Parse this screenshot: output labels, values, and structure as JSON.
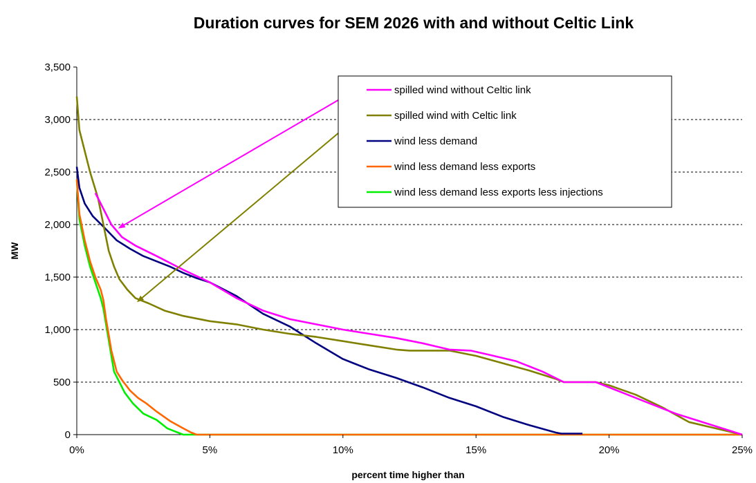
{
  "chart_data": {
    "type": "line",
    "title": "Duration curves for SEM 2026 with and without Celtic Link",
    "xlabel": "percent time higher than",
    "ylabel": "MW",
    "xlim": [
      0,
      25
    ],
    "ylim": [
      0,
      3500
    ],
    "x_ticks": [
      0,
      5,
      10,
      15,
      20,
      25
    ],
    "x_tick_labels": [
      "0%",
      "5%",
      "10%",
      "15%",
      "20%",
      "25%"
    ],
    "y_ticks": [
      0,
      500,
      1000,
      1500,
      2000,
      2500,
      3000,
      3500
    ],
    "y_tick_labels": [
      "0",
      "500",
      "1,000",
      "1,500",
      "2,000",
      "2,500",
      "3,000",
      "3,500"
    ],
    "grid": "horizontal dashed",
    "legend_position": "top-right",
    "series": [
      {
        "name": "spilled wind without Celtic link",
        "color": "#ff00ff",
        "points": [
          [
            0.7,
            2300
          ],
          [
            1.0,
            2150
          ],
          [
            1.3,
            2000
          ],
          [
            1.7,
            1880
          ],
          [
            2.2,
            1800
          ],
          [
            3.0,
            1700
          ],
          [
            4.0,
            1570
          ],
          [
            5.0,
            1450
          ],
          [
            6.0,
            1300
          ],
          [
            7.0,
            1180
          ],
          [
            8.0,
            1100
          ],
          [
            9.0,
            1050
          ],
          [
            10.0,
            1000
          ],
          [
            11.0,
            960
          ],
          [
            12.0,
            920
          ],
          [
            13.0,
            870
          ],
          [
            14.0,
            810
          ],
          [
            14.8,
            800
          ],
          [
            15.5,
            760
          ],
          [
            16.5,
            700
          ],
          [
            17.5,
            600
          ],
          [
            18.3,
            500
          ],
          [
            19.0,
            500
          ],
          [
            19.5,
            500
          ],
          [
            20.5,
            400
          ],
          [
            21.5,
            300
          ],
          [
            22.5,
            200
          ],
          [
            23.5,
            120
          ],
          [
            24.5,
            40
          ],
          [
            25.0,
            0
          ]
        ]
      },
      {
        "name": "spilled wind with Celtic link",
        "color": "#808000",
        "points": [
          [
            0.0,
            3220
          ],
          [
            0.1,
            2900
          ],
          [
            0.3,
            2700
          ],
          [
            0.5,
            2500
          ],
          [
            0.8,
            2250
          ],
          [
            1.0,
            2000
          ],
          [
            1.2,
            1750
          ],
          [
            1.4,
            1600
          ],
          [
            1.6,
            1480
          ],
          [
            1.9,
            1380
          ],
          [
            2.2,
            1300
          ],
          [
            2.7,
            1250
          ],
          [
            3.3,
            1180
          ],
          [
            4.0,
            1130
          ],
          [
            5.0,
            1080
          ],
          [
            6.0,
            1050
          ],
          [
            7.0,
            1000
          ],
          [
            8.0,
            960
          ],
          [
            9.0,
            930
          ],
          [
            10.0,
            890
          ],
          [
            11.0,
            850
          ],
          [
            12.0,
            810
          ],
          [
            12.5,
            800
          ],
          [
            14.0,
            800
          ],
          [
            15.0,
            750
          ],
          [
            16.0,
            680
          ],
          [
            17.0,
            610
          ],
          [
            18.0,
            530
          ],
          [
            18.3,
            500
          ],
          [
            19.0,
            500
          ],
          [
            19.5,
            500
          ],
          [
            20.0,
            470
          ],
          [
            21.0,
            380
          ],
          [
            22.0,
            260
          ],
          [
            23.0,
            120
          ],
          [
            24.0,
            60
          ],
          [
            25.0,
            0
          ]
        ]
      },
      {
        "name": "wind less demand",
        "color": "#000080",
        "points": [
          [
            0.0,
            2550
          ],
          [
            0.1,
            2350
          ],
          [
            0.3,
            2200
          ],
          [
            0.6,
            2080
          ],
          [
            1.0,
            1980
          ],
          [
            1.5,
            1850
          ],
          [
            2.0,
            1770
          ],
          [
            2.5,
            1700
          ],
          [
            3.0,
            1650
          ],
          [
            3.5,
            1600
          ],
          [
            4.0,
            1540
          ],
          [
            4.5,
            1490
          ],
          [
            5.0,
            1450
          ],
          [
            6.0,
            1320
          ],
          [
            7.0,
            1150
          ],
          [
            8.0,
            1030
          ],
          [
            9.0,
            870
          ],
          [
            10.0,
            720
          ],
          [
            11.0,
            620
          ],
          [
            12.0,
            540
          ],
          [
            13.0,
            450
          ],
          [
            14.0,
            350
          ],
          [
            15.0,
            270
          ],
          [
            16.0,
            170
          ],
          [
            17.0,
            90
          ],
          [
            18.0,
            20
          ],
          [
            18.2,
            10
          ],
          [
            19.0,
            10
          ]
        ]
      },
      {
        "name": "wind less demand less exports",
        "color": "#ff6600",
        "points": [
          [
            0.0,
            2430
          ],
          [
            0.1,
            2100
          ],
          [
            0.3,
            1850
          ],
          [
            0.5,
            1650
          ],
          [
            0.7,
            1500
          ],
          [
            0.9,
            1380
          ],
          [
            1.0,
            1280
          ],
          [
            1.1,
            1100
          ],
          [
            1.2,
            950
          ],
          [
            1.3,
            800
          ],
          [
            1.4,
            700
          ],
          [
            1.5,
            600
          ],
          [
            1.7,
            520
          ],
          [
            2.0,
            420
          ],
          [
            2.3,
            350
          ],
          [
            2.6,
            300
          ],
          [
            3.0,
            220
          ],
          [
            3.5,
            130
          ],
          [
            4.0,
            60
          ],
          [
            4.3,
            20
          ],
          [
            4.5,
            0
          ],
          [
            25.0,
            0
          ]
        ]
      },
      {
        "name": "wind less demand less exports less injections",
        "color": "#00ee00",
        "points": [
          [
            0.0,
            2420
          ],
          [
            0.1,
            2050
          ],
          [
            0.3,
            1800
          ],
          [
            0.5,
            1600
          ],
          [
            0.7,
            1450
          ],
          [
            0.9,
            1300
          ],
          [
            1.0,
            1200
          ],
          [
            1.1,
            1050
          ],
          [
            1.2,
            900
          ],
          [
            1.3,
            750
          ],
          [
            1.4,
            600
          ],
          [
            1.6,
            500
          ],
          [
            1.8,
            400
          ],
          [
            2.1,
            300
          ],
          [
            2.5,
            200
          ],
          [
            3.0,
            140
          ],
          [
            3.4,
            60
          ],
          [
            3.8,
            20
          ],
          [
            4.0,
            0
          ],
          [
            25.0,
            0
          ]
        ]
      }
    ],
    "annotations": [
      {
        "type": "arrow",
        "series": "spilled wind without Celtic link",
        "color": "#ff00ff",
        "from": [
          10.6,
          3300
        ],
        "to": [
          1.6,
          1970
        ]
      },
      {
        "type": "arrow",
        "series": "spilled wind with Celtic link",
        "color": "#808000",
        "from": [
          10.6,
          3035
        ],
        "to": [
          2.3,
          1270
        ]
      }
    ]
  }
}
